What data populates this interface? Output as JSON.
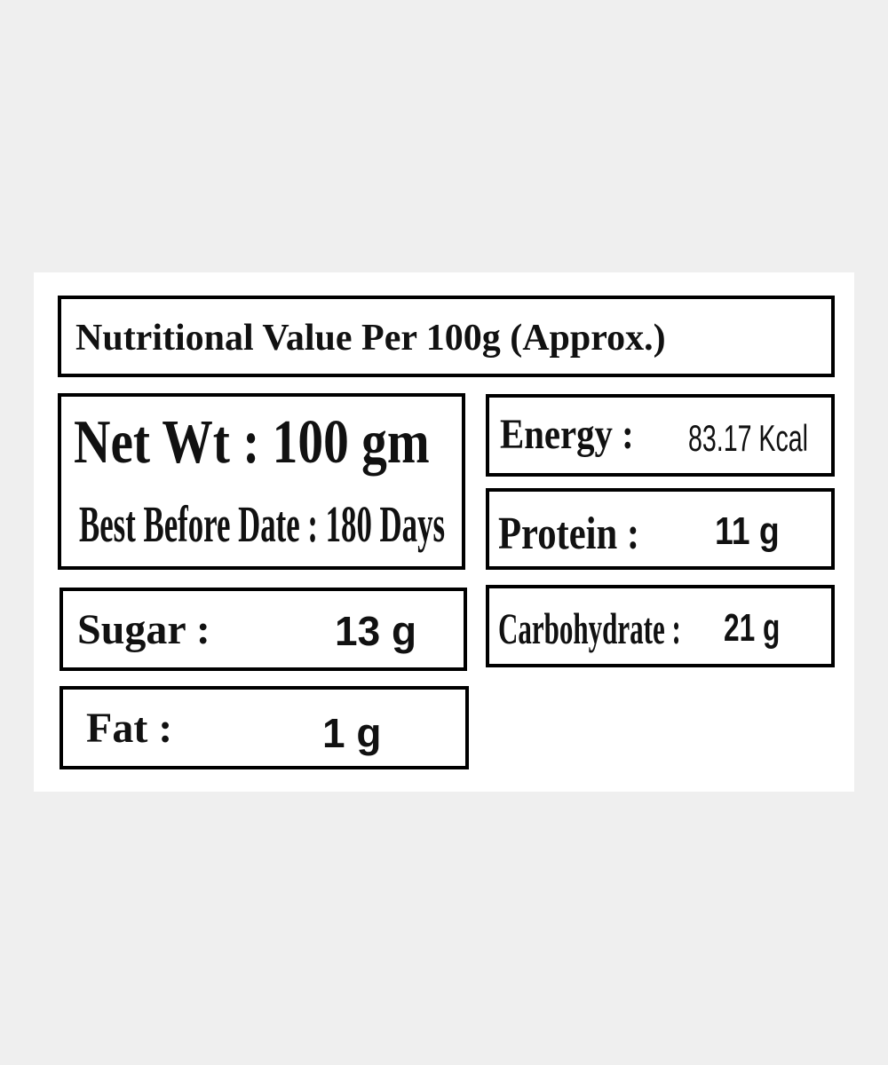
{
  "title": "Nutritional Value Per 100g  (Approx.)",
  "net_weight": "Net Wt : 100 gm",
  "best_before": "Best Before Date : 180 Days",
  "items": [
    {
      "label": "Energy :",
      "value": "83.17 Kcal"
    },
    {
      "label": "Protein :",
      "value": "11 g"
    },
    {
      "label": "Carbohydrate :",
      "value": "21 g"
    },
    {
      "label": "Sugar :",
      "value": "13 g"
    },
    {
      "label": "Fat :",
      "value": "1 g"
    }
  ]
}
